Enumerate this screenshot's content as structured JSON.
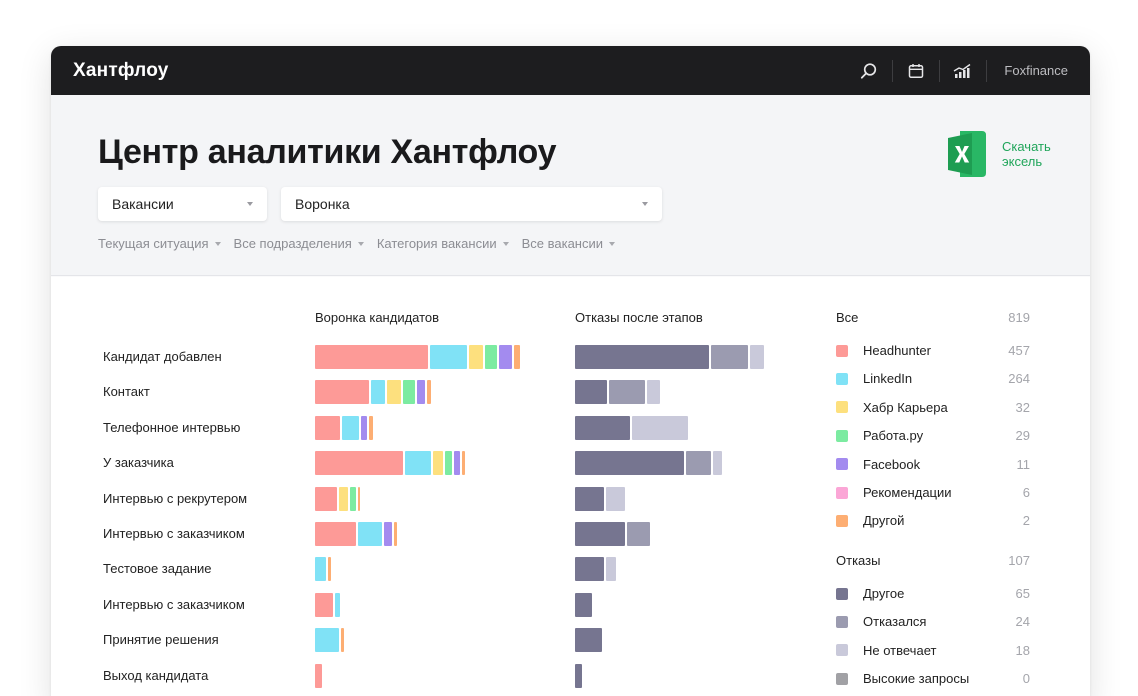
{
  "app": {
    "logo": "Хантфлоу",
    "account": "Foxfinance",
    "icons": [
      "search-icon",
      "calendar-icon",
      "analytics-icon"
    ]
  },
  "header": {
    "title": "Центр аналитики Хантфлоу",
    "excel_label": "Скачать эксель",
    "excel_icon": "excel-icon",
    "select_vacancies": "Вакансии",
    "select_funnel": "Воронка",
    "filters": [
      "Текущая ситуация",
      "Все подразделения",
      "Категория вакансии",
      "Все вакансии"
    ]
  },
  "colors": {
    "headhunter": "#fd9a97",
    "linkedin": "#80e2f6",
    "habr": "#fde07e",
    "rabota": "#7ceba1",
    "facebook": "#a38bef",
    "recommend": "#fba6d6",
    "other_src": "#fdae73",
    "rej_other": "#767590",
    "rej_refused": "#9b9bb0",
    "rej_mismatch": "#c9c9da",
    "rej_high": "#a1a1a5",
    "accent_green": "#20a55a"
  },
  "chart_data": {
    "type": "bar",
    "categories": [
      "Кандидат добавлен",
      "Контакт",
      "Телефонное интервью",
      "У заказчика",
      "Интервью с рекрутером",
      "Интервью с заказчиком",
      "Тестовое задание",
      "Интервью с заказчиком",
      "Принятие решения",
      "Выход кандидата"
    ],
    "funnel": {
      "title": "Воронка кандидатов",
      "series": [
        {
          "name": "Headhunter",
          "values": [
            113,
            54,
            25,
            88,
            22,
            41,
            0,
            18,
            0,
            7
          ]
        },
        {
          "name": "LinkedIn",
          "values": [
            37,
            14,
            17,
            26,
            0,
            24,
            11,
            5,
            24,
            0
          ]
        },
        {
          "name": "Хабр Карьера",
          "values": [
            14,
            14,
            0,
            10,
            9,
            0,
            0,
            0,
            0,
            0
          ]
        },
        {
          "name": "Работа.ру",
          "values": [
            12,
            12,
            0,
            7,
            6,
            0,
            0,
            0,
            0,
            0
          ]
        },
        {
          "name": "Facebook",
          "values": [
            13,
            8,
            6,
            6,
            0,
            8,
            0,
            0,
            0,
            0
          ]
        },
        {
          "name": "Рекомендации",
          "values": [
            0,
            0,
            0,
            0,
            0,
            0,
            0,
            0,
            0,
            0
          ]
        },
        {
          "name": "Другой",
          "values": [
            6,
            4,
            4,
            3,
            2,
            3,
            3,
            0,
            3,
            0
          ]
        }
      ]
    },
    "rejections": {
      "title": "Отказы после этапов",
      "series": [
        {
          "name": "Другое",
          "values": [
            134,
            32,
            55,
            109,
            29,
            50,
            29,
            17,
            27,
            7
          ]
        },
        {
          "name": "Отказался",
          "values": [
            37,
            36,
            0,
            25,
            0,
            23,
            0,
            0,
            0,
            0
          ]
        },
        {
          "name": "Не отвечает",
          "values": [
            14,
            13,
            56,
            9,
            19,
            0,
            10,
            0,
            0,
            0
          ]
        },
        {
          "name": "Высокие запросы",
          "values": [
            0,
            0,
            0,
            0,
            0,
            0,
            0,
            0,
            0,
            0
          ]
        }
      ]
    }
  },
  "legend": {
    "sources_title": "Все",
    "sources_total": "819",
    "sources": [
      {
        "label": "Headhunter",
        "count": "457",
        "color_key": "headhunter"
      },
      {
        "label": "LinkedIn",
        "count": "264",
        "color_key": "linkedin"
      },
      {
        "label": "Хабр Карьера",
        "count": "32",
        "color_key": "habr"
      },
      {
        "label": "Работа.ру",
        "count": "29",
        "color_key": "rabota"
      },
      {
        "label": "Facebook",
        "count": "11",
        "color_key": "facebook"
      },
      {
        "label": "Рекомендации",
        "count": "6",
        "color_key": "recommend"
      },
      {
        "label": "Другой",
        "count": "2",
        "color_key": "other_src"
      }
    ],
    "reject_title": "Отказы",
    "reject_total": "107",
    "rejects": [
      {
        "label": "Другое",
        "count": "65",
        "color_key": "rej_other"
      },
      {
        "label": "Отказался",
        "count": "24",
        "color_key": "rej_refused"
      },
      {
        "label": "Не отвечает",
        "count": "18",
        "color_key": "rej_mismatch"
      },
      {
        "label": "Высокие запросы",
        "count": "0",
        "color_key": "rej_high"
      }
    ]
  }
}
